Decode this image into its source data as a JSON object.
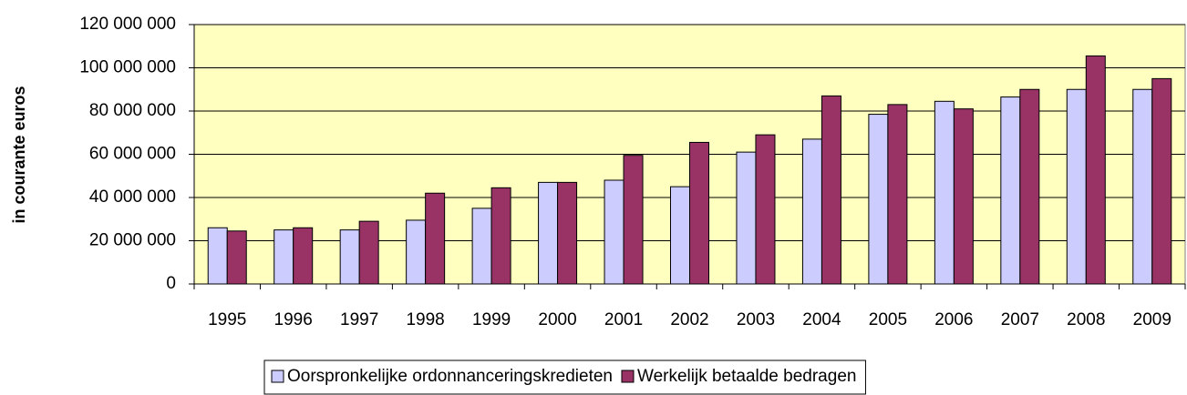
{
  "chart_data": {
    "type": "bar",
    "y_label": "in courante euros",
    "categories": [
      "1995",
      "1996",
      "1997",
      "1998",
      "1999",
      "2000",
      "2001",
      "2002",
      "2003",
      "2004",
      "2005",
      "2006",
      "2007",
      "2008",
      "2009"
    ],
    "series": [
      {
        "name": "Oorspronkelijke ordonnanceringskredieten",
        "color": "#ccccff",
        "values": [
          26000000,
          25000000,
          25000000,
          29500000,
          35000000,
          47000000,
          48000000,
          45000000,
          61000000,
          67000000,
          78500000,
          84500000,
          86500000,
          90000000,
          90000000
        ]
      },
      {
        "name": "Werkelijk betaalde bedragen",
        "color": "#993366",
        "values": [
          24500000,
          26000000,
          29000000,
          42000000,
          44500000,
          47000000,
          59500000,
          65500000,
          69000000,
          87000000,
          83000000,
          81000000,
          90000000,
          105500000,
          95000000
        ]
      }
    ],
    "ylim": [
      0,
      120000000
    ],
    "yticks": [
      0,
      {
        "value": 20000000,
        "label": "20 000 000"
      },
      {
        "value": 40000000,
        "label": "40 000 000"
      },
      {
        "value": 60000000,
        "label": "60 000 000"
      },
      {
        "value": 80000000,
        "label": "80 000 000"
      },
      {
        "value": 100000000,
        "label": "100 000 000"
      },
      {
        "value": 120000000,
        "label": "120 000 000"
      }
    ],
    "grid": true,
    "legend": "bottom",
    "background": "#ffffc0"
  }
}
